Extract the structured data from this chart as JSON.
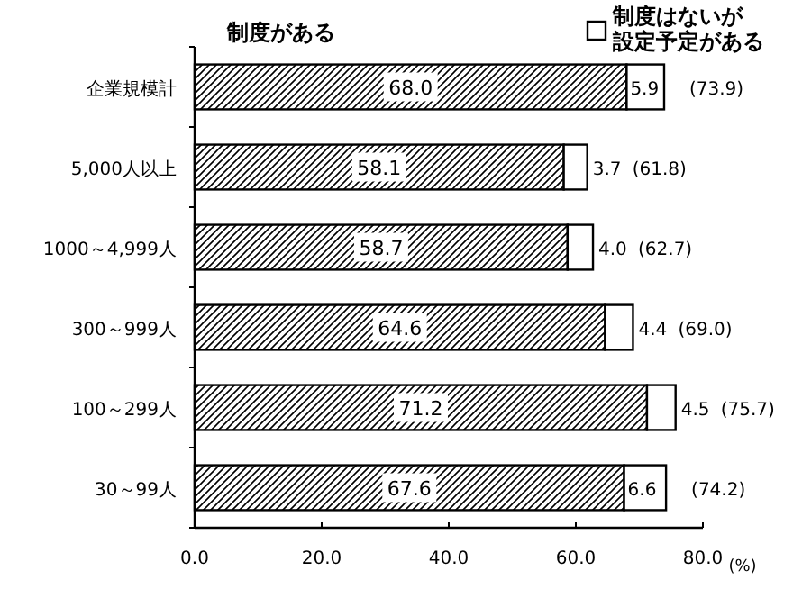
{
  "chart_data": {
    "type": "bar",
    "orientation": "horizontal",
    "stacked": true,
    "legend": "top",
    "grid": false,
    "xlabel": "(%)",
    "categories": [
      "企業規模計",
      "5,000人以上",
      "1000～4,999人",
      "300～999人",
      "100～299人",
      "30～99人"
    ],
    "series": [
      {
        "name": "制度がある",
        "color": "#000000",
        "values": [
          68.0,
          58.1,
          58.7,
          64.6,
          71.2,
          67.6
        ],
        "value_labels": [
          "68.0",
          "58.1",
          "58.7",
          "64.6",
          "71.2",
          "67.6"
        ]
      },
      {
        "name": "制度はないが設定予定がある",
        "color": "#ffffff",
        "values": [
          5.9,
          3.7,
          4.0,
          4.4,
          4.5,
          6.6
        ],
        "value_labels": [
          "5.9",
          "3.7",
          "4.0",
          "4.4",
          "4.5",
          "6.6"
        ]
      }
    ],
    "totals": [
      "(73.9)",
      "(61.8)",
      "(62.7)",
      "(69.0)",
      "(75.7)",
      "(74.2)"
    ],
    "xlim": [
      0,
      80
    ],
    "xticks": [
      {
        "value": 0,
        "label": "0.0"
      },
      {
        "value": 20,
        "label": "20.0"
      },
      {
        "value": 40,
        "label": "40.0"
      },
      {
        "value": 60,
        "label": "60.0"
      },
      {
        "value": 80,
        "label": "80.0"
      }
    ]
  }
}
